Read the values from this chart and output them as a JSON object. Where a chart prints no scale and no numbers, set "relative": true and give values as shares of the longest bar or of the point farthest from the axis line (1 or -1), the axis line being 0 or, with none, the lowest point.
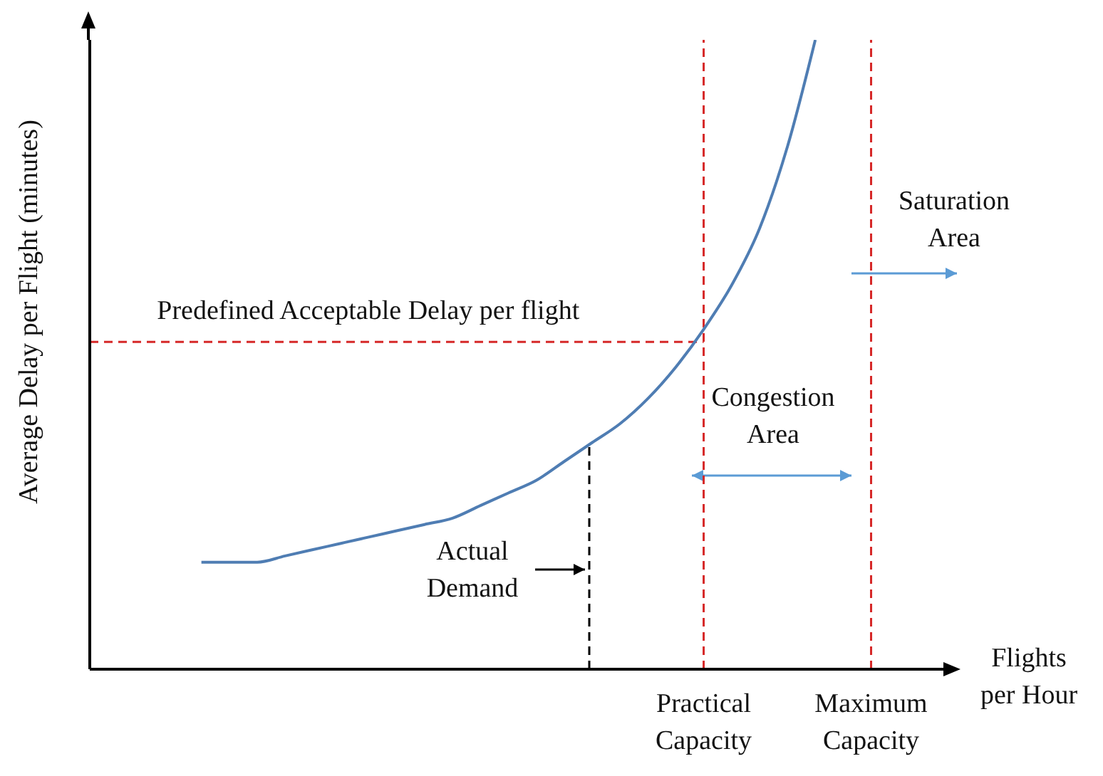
{
  "chart_data": {
    "type": "line",
    "relative": true,
    "ylabel": "Average Delay per Flight (minutes)",
    "xlabel": "Flights per Hour",
    "categories": [
      null,
      null,
      null,
      null,
      null,
      null,
      null,
      null,
      null,
      null,
      null,
      null,
      null,
      null,
      null,
      null,
      null,
      null,
      null,
      null,
      null,
      null,
      "Practical Capacity",
      null,
      null,
      null,
      null,
      null,
      "Maximum Capacity",
      null,
      null,
      null
    ],
    "series": [
      {
        "color": "#4f7db3",
        "values": [
          null,
          null,
          null,
          null,
          0.17,
          0.17,
          0.17,
          0.18,
          0.19,
          0.2,
          0.21,
          0.22,
          0.23,
          0.24,
          0.26,
          0.28,
          0.3,
          0.33,
          0.36,
          0.39,
          0.43,
          0.48,
          0.54,
          0.61,
          0.7,
          0.83,
          1,
          null,
          null,
          null,
          null,
          null
        ]
      }
    ],
    "ref_lines": [
      {
        "axis": "y",
        "value": 0.52,
        "label": "Predefined Acceptable Delay per flight",
        "color": "#d62828",
        "line_style": "dashed"
      },
      {
        "axis": "x",
        "value": "Practical Capacity",
        "color": "#d62828",
        "line_style": "dashed"
      },
      {
        "axis": "x",
        "value": "Maximum Capacity",
        "color": "#d62828",
        "line_style": "dashed"
      }
    ],
    "annotations": [
      "Actual Demand",
      "Congestion Area",
      "Saturation Area"
    ]
  }
}
